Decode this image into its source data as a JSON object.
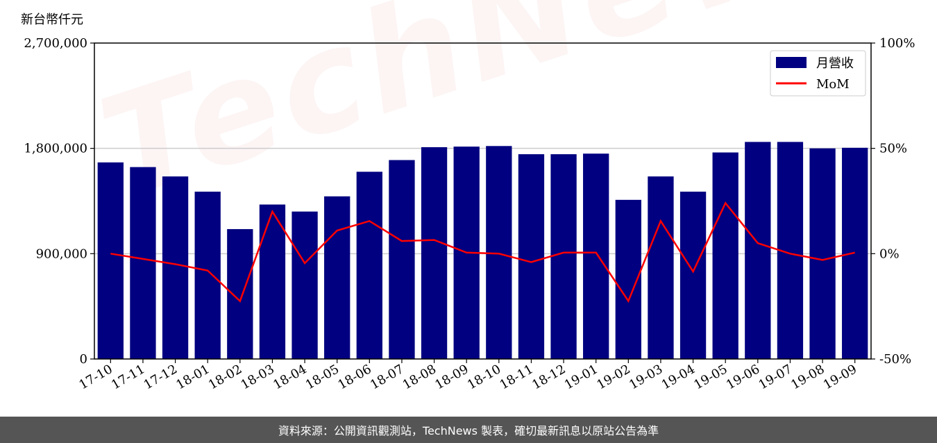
{
  "chart_data": {
    "type": "bar",
    "unit_label": "新台幣仟元",
    "watermark": "TechNews",
    "categories": [
      "17-10",
      "17-11",
      "17-12",
      "18-01",
      "18-02",
      "18-03",
      "18-04",
      "18-05",
      "18-06",
      "18-07",
      "18-08",
      "18-09",
      "18-10",
      "18-11",
      "18-12",
      "19-01",
      "19-02",
      "19-03",
      "19-04",
      "19-05",
      "19-06",
      "19-07",
      "19-08",
      "19-09"
    ],
    "series": [
      {
        "name": "月營收",
        "axis": "left",
        "type": "bar",
        "color": "#000080",
        "values": [
          1680000,
          1640000,
          1560000,
          1430000,
          1110000,
          1320000,
          1260000,
          1390000,
          1600000,
          1700000,
          1810000,
          1815000,
          1820000,
          1750000,
          1750000,
          1755000,
          1360000,
          1560000,
          1430000,
          1765000,
          1855000,
          1855000,
          1800000,
          1805000
        ]
      },
      {
        "name": "MoM",
        "axis": "right",
        "type": "line",
        "color": "#ff0000",
        "values": [
          0.0,
          -2.5,
          -5.0,
          -8.0,
          -22.5,
          20.0,
          -4.5,
          11.0,
          15.5,
          6.0,
          6.5,
          0.5,
          0.0,
          -4.0,
          0.5,
          0.5,
          -22.5,
          15.5,
          -8.5,
          24.0,
          5.0,
          0.0,
          -3.0,
          0.5
        ]
      }
    ],
    "y_left": {
      "min": 0,
      "max": 2700000,
      "ticks": [
        0,
        900000,
        1800000,
        2700000
      ],
      "tick_labels": [
        "0",
        "900,000",
        "1,800,000",
        "2,700,000"
      ]
    },
    "y_right": {
      "min": -50,
      "max": 100,
      "ticks": [
        -50,
        0,
        50,
        100
      ],
      "tick_labels": [
        "-50%",
        "0%",
        "50%",
        "100%"
      ]
    },
    "grid": "horizontal",
    "legend": "top-right"
  },
  "footer": {
    "text": "資料來源：公開資訊觀測站，TechNews 製表，確切最新訊息以原站公告為準"
  }
}
